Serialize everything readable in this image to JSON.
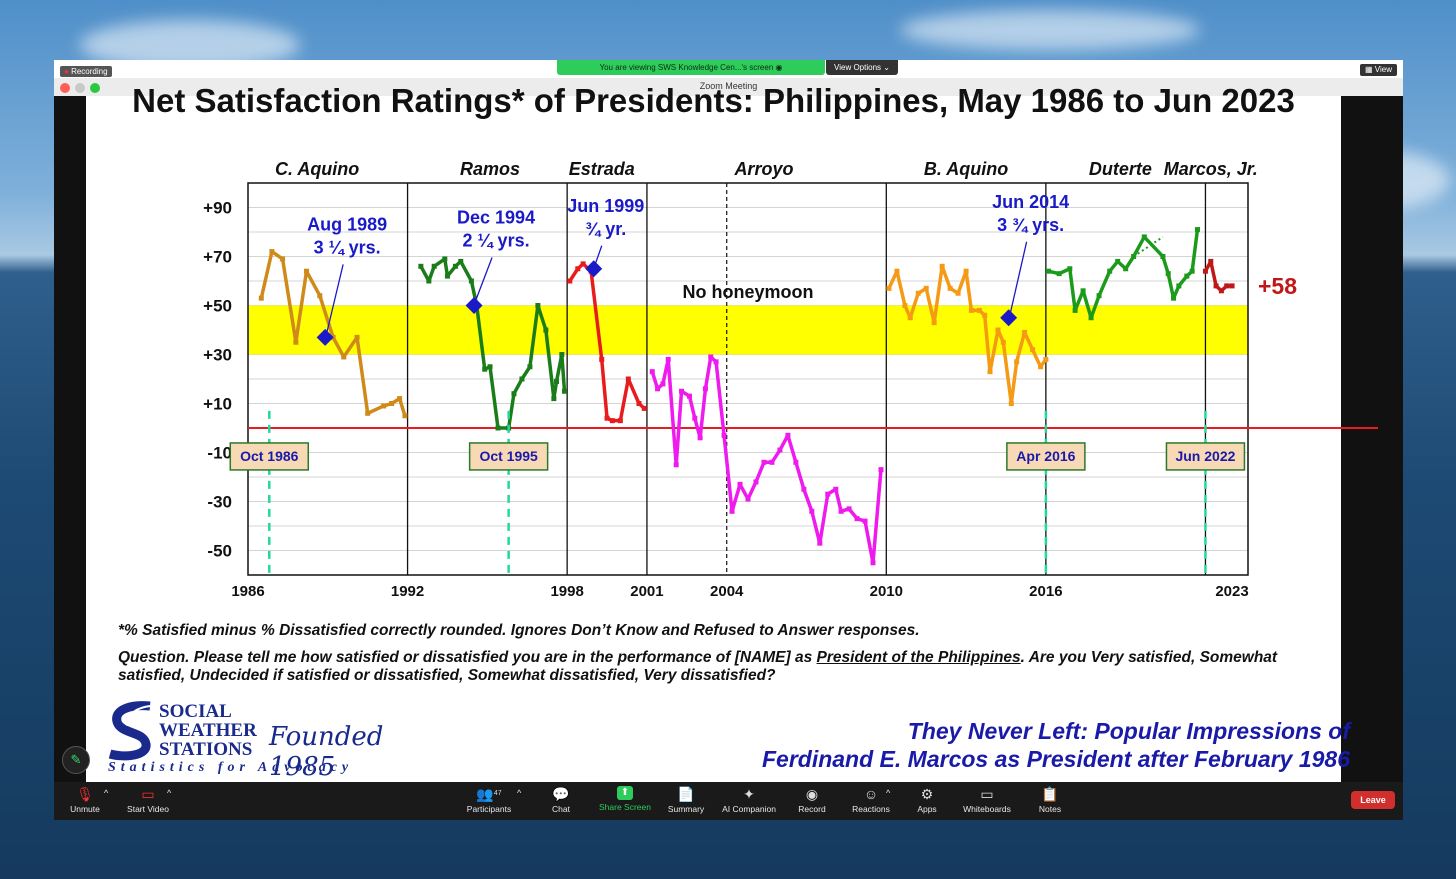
{
  "zoom": {
    "recording_label": "Recording",
    "window_title": "Zoom Meeting",
    "share_banner": "You are viewing SWS Knowledge Cen...'s screen",
    "view_options": "View Options",
    "view_button": "View",
    "toolbar": {
      "unmute": "Unmute",
      "start_video": "Start Video",
      "participants": "Participants",
      "participants_count": "47",
      "chat": "Chat",
      "share_screen": "Share Screen",
      "summary": "Summary",
      "ai_companion": "AI Companion",
      "record": "Record",
      "reactions": "Reactions",
      "apps": "Apps",
      "whiteboards": "Whiteboards",
      "notes": "Notes",
      "leave": "Leave"
    }
  },
  "slide": {
    "title": "Net Satisfaction Ratings* of Presidents: Philippines, May 1986 to Jun 2023",
    "footnote1": "*% Satisfied minus % Dissatisfied correctly rounded. Ignores Don’t Know and Refused to Answer responses.",
    "question_prefix": "Question. Please tell me how satisfied or dissatisfied you are in the performance of [NAME] as ",
    "question_underlined": "President of the Philippines",
    "question_suffix": ".  Are you Very satisfied, Somewhat satisfied, Undecided if satisfied or dissatisfied, Somewhat dissatisfied, Very dissatisfied?",
    "tagline1": "They Never Left: Popular Impressions of",
    "tagline2": "Ferdinand E. Marcos as President after February 1986",
    "logo": {
      "line1": "SOCIAL",
      "line2": "WEATHER",
      "line3": "STATIONS",
      "founded": "Founded 1985",
      "motto": "Statistics for Advocacy"
    }
  },
  "colors": {
    "aquino": "#d08a1a",
    "ramos": "#1a7d1a",
    "estrada": "#e81c1c",
    "arroyo": "#ee1aee",
    "baquino": "#f59a14",
    "duterte": "#1c9a1c",
    "marcos": "#c01818",
    "band": "#ffff00",
    "annot": "#1a1ac8"
  },
  "chart_data": {
    "type": "line",
    "xlim": [
      1986,
      2023.6
    ],
    "ylim": [
      -60,
      100
    ],
    "y_ticks": [
      {
        "v": 90,
        "l": "+90"
      },
      {
        "v": 70,
        "l": "+70"
      },
      {
        "v": 50,
        "l": "+50"
      },
      {
        "v": 30,
        "l": "+30"
      },
      {
        "v": 10,
        "l": "+10"
      },
      {
        "v": -10,
        "l": "-10"
      },
      {
        "v": -30,
        "l": "-30"
      },
      {
        "v": -50,
        "l": "-50"
      }
    ],
    "x_ticks": [
      1986,
      1992,
      1998,
      2001,
      2004,
      2010,
      2016,
      2023
    ],
    "band": [
      30,
      50
    ],
    "zero_line": 0,
    "presidents": [
      {
        "name": "C. Aquino",
        "mid": 1988.6
      },
      {
        "name": "Ramos",
        "mid": 1995.1
      },
      {
        "name": "Estrada",
        "mid": 1999.3
      },
      {
        "name": "Arroyo",
        "mid": 2005.4
      },
      {
        "name": "B. Aquino",
        "mid": 2013.0
      },
      {
        "name": "Duterte",
        "mid": 2018.8
      },
      {
        "name": "Marcos, Jr.",
        "mid": 2022.2
      }
    ],
    "term_lines": [
      1992,
      1998,
      2001,
      2010,
      2016,
      2022
    ],
    "dashed_line": 2004,
    "series": [
      {
        "name": "C. Aquino",
        "color_key": "aquino",
        "x": [
          1986.5,
          1986.9,
          1987.3,
          1987.8,
          1988.2,
          1988.7,
          1989.2,
          1989.6,
          1990.1,
          1990.5,
          1991.1,
          1991.4,
          1991.7,
          1991.9
        ],
        "y": [
          53,
          72,
          69,
          35,
          64,
          54,
          37,
          29,
          37,
          6,
          9,
          10,
          12,
          5
        ]
      },
      {
        "name": "Ramos",
        "color_key": "ramos",
        "x": [
          1992.5,
          1992.8,
          1993.0,
          1993.4,
          1993.5,
          1993.8,
          1994.0,
          1994.4,
          1994.6,
          1994.9,
          1995.1,
          1995.4,
          1995.8,
          1996.0,
          1996.3,
          1996.6,
          1996.9,
          1997.2,
          1997.5,
          1997.6,
          1997.8,
          1997.9
        ],
        "y": [
          66,
          60,
          66,
          69,
          62,
          66,
          68,
          60,
          50,
          24,
          25,
          0,
          0,
          14,
          20,
          25,
          50,
          40,
          12,
          19,
          30,
          15
        ]
      },
      {
        "name": "Estrada",
        "color_key": "estrada",
        "x": [
          1998.1,
          1998.4,
          1998.6,
          1998.9,
          1999.3,
          1999.5,
          1999.7,
          2000.0,
          2000.3,
          2000.7,
          2000.9
        ],
        "y": [
          60,
          65,
          67,
          64,
          28,
          4,
          3,
          3,
          20,
          10,
          8
        ]
      },
      {
        "name": "Arroyo",
        "color_key": "arroyo",
        "x": [
          2001.2,
          2001.4,
          2001.6,
          2001.8,
          2002.1,
          2002.3,
          2002.6,
          2002.8,
          2003.0,
          2003.2,
          2003.4,
          2003.6,
          2003.9,
          2004.2,
          2004.5,
          2004.8,
          2005.1,
          2005.4,
          2005.7,
          2006.0,
          2006.3,
          2006.6,
          2006.9,
          2007.2,
          2007.5,
          2007.8,
          2008.1,
          2008.3,
          2008.6,
          2008.9,
          2009.2,
          2009.5,
          2009.8
        ],
        "y": [
          23,
          16,
          18,
          28,
          -15,
          15,
          13,
          4,
          -4,
          16,
          29,
          27,
          -3,
          -34,
          -23,
          -29,
          -22,
          -14,
          -14,
          -9,
          -3,
          -14,
          -25,
          -34,
          -47,
          -27,
          -25,
          -34,
          -33,
          -37,
          -38,
          -55,
          -17
        ]
      },
      {
        "name": "B. Aquino",
        "color_key": "baquino",
        "x": [
          2010.1,
          2010.4,
          2010.7,
          2010.9,
          2011.2,
          2011.5,
          2011.8,
          2012.1,
          2012.4,
          2012.7,
          2013.0,
          2013.2,
          2013.5,
          2013.7,
          2013.9,
          2014.2,
          2014.4,
          2014.7,
          2014.9,
          2015.2,
          2015.5,
          2015.8,
          2016.0
        ],
        "y": [
          57,
          64,
          50,
          45,
          55,
          57,
          43,
          66,
          57,
          55,
          64,
          48,
          48,
          46,
          23,
          40,
          35,
          10,
          27,
          39,
          32,
          25,
          28
        ]
      },
      {
        "name": "Duterte",
        "color_key": "duterte",
        "x": [
          2016.1,
          2016.5,
          2016.9,
          2017.1,
          2017.4,
          2017.7,
          2018.0,
          2018.4,
          2018.7,
          2019.0,
          2019.3,
          2019.7,
          2020.4,
          2020.6,
          2020.8,
          2021.0,
          2021.3,
          2021.5,
          2021.7
        ],
        "y": [
          64,
          63,
          65,
          48,
          56,
          45,
          54,
          64,
          68,
          65,
          70,
          78,
          70,
          63,
          53,
          58,
          62,
          64,
          81
        ]
      },
      {
        "name": "Marcos, Jr.",
        "color_key": "marcos",
        "x": [
          2022.0,
          2022.2,
          2022.4,
          2022.6,
          2022.8,
          2023.0
        ],
        "y": [
          64,
          68,
          58,
          56,
          58,
          58
        ]
      }
    ],
    "markers": [
      {
        "x": 1988.9,
        "y": 37,
        "label1": "Aug 1989",
        "label2": "3 ¼ yrs."
      },
      {
        "x": 1994.5,
        "y": 50,
        "label1": "Dec 1994",
        "label2": "2 ¼ yrs."
      },
      {
        "x": 1999.0,
        "y": 65,
        "label1": "Jun 1999",
        "label2": "¾ yr."
      },
      {
        "x": 2014.6,
        "y": 45,
        "label1": "Jun 2014",
        "label2": "3 ¾ yrs."
      }
    ],
    "date_boxes": [
      {
        "x": 1986.8,
        "label": "Oct 1986"
      },
      {
        "x": 1995.8,
        "label": "Oct 1995"
      },
      {
        "x": 2016.0,
        "label": "Apr 2016"
      },
      {
        "x": 2022.0,
        "label": "Jun 2022"
      }
    ],
    "annotations": {
      "no_honeymoon": "No honeymoon",
      "latest": "+58"
    }
  }
}
